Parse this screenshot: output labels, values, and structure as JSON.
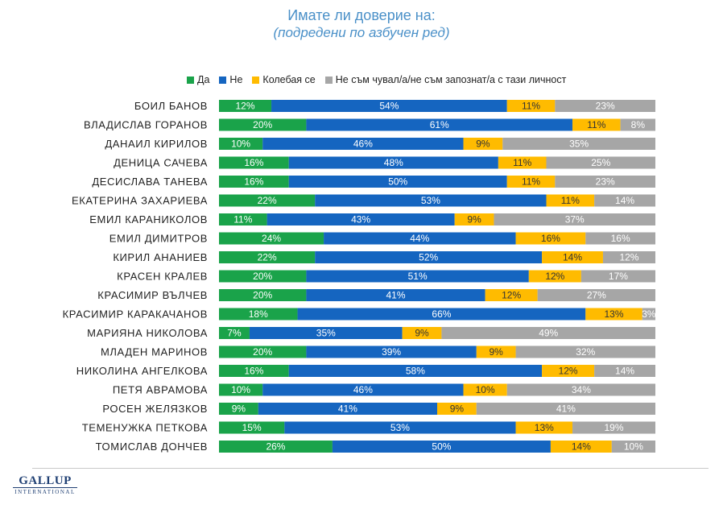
{
  "chart_data": {
    "type": "bar",
    "orientation": "horizontal",
    "stacked": true,
    "title": "Имате ли доверие на:",
    "subtitle": "(подредени по азбучен ред)",
    "legend_position": "top",
    "xlim": [
      0,
      100
    ],
    "grid": false,
    "categories": [
      "БОИЛ БАНОВ",
      "ВЛАДИСЛАВ ГОРАНОВ",
      "ДАНАИЛ КИРИЛОВ",
      "ДЕНИЦА САЧЕВА",
      "ДЕСИСЛАВА ТАНЕВА",
      "ЕКАТЕРИНА ЗАХАРИЕВА",
      "ЕМИЛ КАРАНИКОЛОВ",
      "ЕМИЛ ДИМИТРОВ",
      "КИРИЛ АНАНИЕВ",
      "КРАСЕН КРАЛЕВ",
      "КРАСИМИР ВЪЛЧЕВ",
      "КРАСИМИР КАРАКАЧАНОВ",
      "МАРИЯНА НИКОЛОВА",
      "МЛАДЕН МАРИНОВ",
      "НИКОЛИНА АНГЕЛКОВА",
      "ПЕТЯ АВРАМОВА",
      "РОСЕН ЖЕЛЯЗКОВ",
      "ТЕМЕНУЖКА ПЕТКОВА",
      "ТОМИСЛАВ ДОНЧЕВ"
    ],
    "series": [
      {
        "name": "Да",
        "color": "#1aa34a",
        "values": [
          12,
          20,
          10,
          16,
          16,
          22,
          11,
          24,
          22,
          20,
          20,
          18,
          7,
          20,
          16,
          10,
          9,
          15,
          26
        ]
      },
      {
        "name": "Не",
        "color": "#1565c0",
        "values": [
          54,
          61,
          46,
          48,
          50,
          53,
          43,
          44,
          52,
          51,
          41,
          66,
          35,
          39,
          58,
          46,
          41,
          53,
          50
        ]
      },
      {
        "name": "Колебая се",
        "color": "#ffbb00",
        "values": [
          11,
          11,
          9,
          11,
          11,
          11,
          9,
          16,
          14,
          12,
          12,
          13,
          9,
          9,
          12,
          10,
          9,
          13,
          14
        ]
      },
      {
        "name": "Не съм чувал/а/не съм запознат/а с тази личност",
        "color": "#a6a6a6",
        "values": [
          23,
          8,
          35,
          25,
          23,
          14,
          37,
          16,
          12,
          17,
          27,
          3,
          49,
          32,
          14,
          34,
          41,
          19,
          10
        ]
      }
    ]
  },
  "logo": {
    "line1": "GALLUP",
    "line2": "INTERNATIONAL"
  }
}
